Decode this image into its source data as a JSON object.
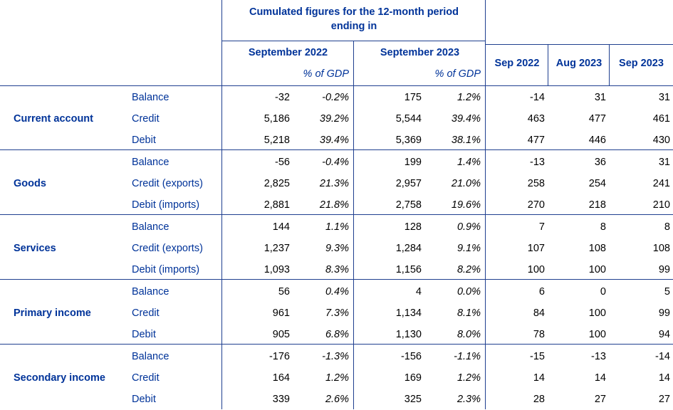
{
  "header": {
    "cumulated_line1": "Cumulated figures for the 12-month period",
    "cumulated_line2": "ending in",
    "period1": "September 2022",
    "period2": "September 2023",
    "pct_gdp1": "% of GDP",
    "pct_gdp2": "% of GDP",
    "month1": "Sep 2022",
    "month2": "Aug 2023",
    "month3": "Sep 2023"
  },
  "groups": [
    {
      "name": "Current account",
      "rows": [
        {
          "label": "Balance",
          "v1": "-32",
          "p1": "-0.2%",
          "v2": "175",
          "p2": "1.2%",
          "m1": "-14",
          "m2": "31",
          "m3": "31"
        },
        {
          "label": "Credit",
          "v1": "5,186",
          "p1": "39.2%",
          "v2": "5,544",
          "p2": "39.4%",
          "m1": "463",
          "m2": "477",
          "m3": "461"
        },
        {
          "label": "Debit",
          "v1": "5,218",
          "p1": "39.4%",
          "v2": "5,369",
          "p2": "38.1%",
          "m1": "477",
          "m2": "446",
          "m3": "430"
        }
      ]
    },
    {
      "name": "Goods",
      "rows": [
        {
          "label": "Balance",
          "v1": "-56",
          "p1": "-0.4%",
          "v2": "199",
          "p2": "1.4%",
          "m1": "-13",
          "m2": "36",
          "m3": "31"
        },
        {
          "label": "Credit (exports)",
          "v1": "2,825",
          "p1": "21.3%",
          "v2": "2,957",
          "p2": "21.0%",
          "m1": "258",
          "m2": "254",
          "m3": "241"
        },
        {
          "label": "Debit (imports)",
          "v1": "2,881",
          "p1": "21.8%",
          "v2": "2,758",
          "p2": "19.6%",
          "m1": "270",
          "m2": "218",
          "m3": "210"
        }
      ]
    },
    {
      "name": "Services",
      "rows": [
        {
          "label": "Balance",
          "v1": "144",
          "p1": "1.1%",
          "v2": "128",
          "p2": "0.9%",
          "m1": "7",
          "m2": "8",
          "m3": "8"
        },
        {
          "label": "Credit (exports)",
          "v1": "1,237",
          "p1": "9.3%",
          "v2": "1,284",
          "p2": "9.1%",
          "m1": "107",
          "m2": "108",
          "m3": "108"
        },
        {
          "label": "Debit (imports)",
          "v1": "1,093",
          "p1": "8.3%",
          "v2": "1,156",
          "p2": "8.2%",
          "m1": "100",
          "m2": "100",
          "m3": "99"
        }
      ]
    },
    {
      "name": "Primary income",
      "rows": [
        {
          "label": "Balance",
          "v1": "56",
          "p1": "0.4%",
          "v2": "4",
          "p2": "0.0%",
          "m1": "6",
          "m2": "0",
          "m3": "5"
        },
        {
          "label": "Credit",
          "v1": "961",
          "p1": "7.3%",
          "v2": "1,134",
          "p2": "8.1%",
          "m1": "84",
          "m2": "100",
          "m3": "99"
        },
        {
          "label": "Debit",
          "v1": "905",
          "p1": "6.8%",
          "v2": "1,130",
          "p2": "8.0%",
          "m1": "78",
          "m2": "100",
          "m3": "94"
        }
      ]
    },
    {
      "name": "Secondary income",
      "rows": [
        {
          "label": "Balance",
          "v1": "-176",
          "p1": "-1.3%",
          "v2": "-156",
          "p2": "-1.1%",
          "m1": "-15",
          "m2": "-13",
          "m3": "-14"
        },
        {
          "label": "Credit",
          "v1": "164",
          "p1": "1.2%",
          "v2": "169",
          "p2": "1.2%",
          "m1": "14",
          "m2": "14",
          "m3": "14"
        },
        {
          "label": "Debit",
          "v1": "339",
          "p1": "2.6%",
          "v2": "325",
          "p2": "2.3%",
          "m1": "28",
          "m2": "27",
          "m3": "27"
        }
      ]
    }
  ]
}
